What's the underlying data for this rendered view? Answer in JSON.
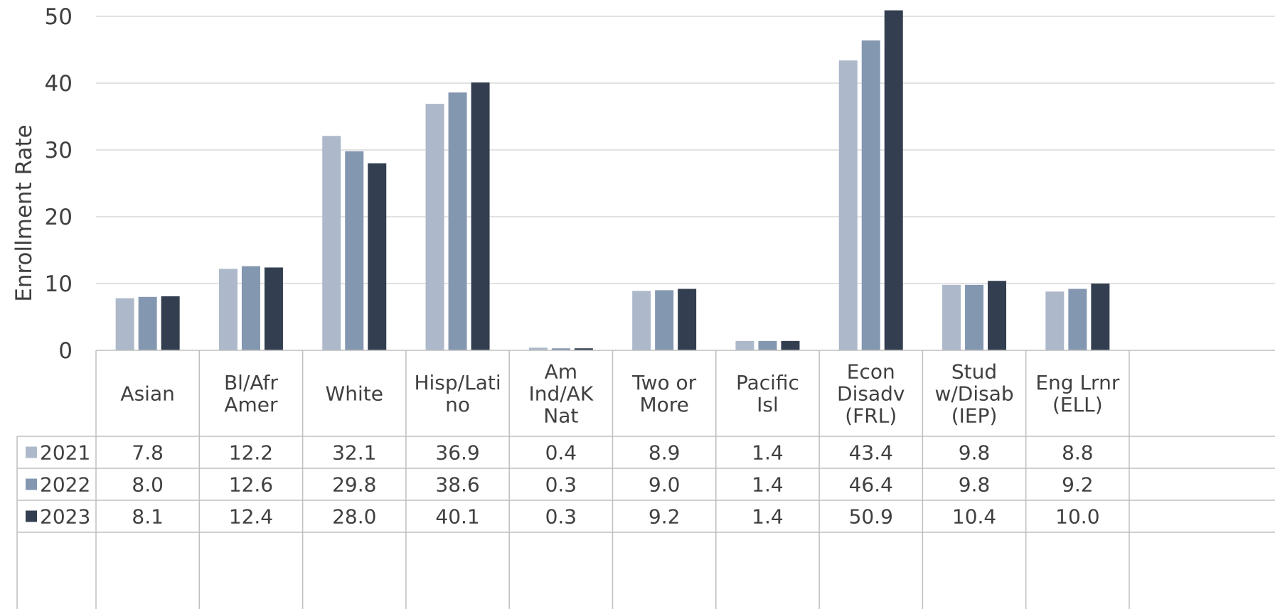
{
  "chart_data": {
    "type": "bar",
    "ylabel": "Enrollment Rate",
    "ylim": [
      0,
      50
    ],
    "yticks": [
      0,
      10,
      20,
      30,
      40,
      50
    ],
    "grid": true,
    "legend_placement": "data-table-left",
    "categories": [
      [
        "Asian"
      ],
      [
        "Bl/Afr",
        "Amer"
      ],
      [
        "White"
      ],
      [
        "Hisp/Lati",
        "no"
      ],
      [
        "Am",
        "Ind/AK",
        "Nat"
      ],
      [
        "Two or",
        "More"
      ],
      [
        "Pacific",
        "Isl"
      ],
      [
        "Econ",
        "Disadv",
        "(FRL)"
      ],
      [
        "Stud",
        "w/Disab",
        "(IEP)"
      ],
      [
        "Eng Lrnr",
        "(ELL)"
      ]
    ],
    "series": [
      {
        "name": "2021",
        "color": "#adb9ca",
        "values": [
          7.8,
          12.2,
          32.1,
          36.9,
          0.4,
          8.9,
          1.4,
          43.4,
          9.8,
          8.8
        ],
        "labels": [
          "7.8",
          "12.2",
          "32.1",
          "36.9",
          "0.4",
          "8.9",
          "1.4",
          "43.4",
          "9.8",
          "8.8"
        ]
      },
      {
        "name": "2022",
        "color": "#8497b0",
        "values": [
          8.0,
          12.6,
          29.8,
          38.6,
          0.3,
          9.0,
          1.4,
          46.4,
          9.8,
          9.2
        ],
        "labels": [
          "8.0",
          "12.6",
          "29.8",
          "38.6",
          "0.3",
          "9.0",
          "1.4",
          "46.4",
          "9.8",
          "9.2"
        ]
      },
      {
        "name": "2023",
        "color": "#333f50",
        "values": [
          8.1,
          12.4,
          28.0,
          40.1,
          0.3,
          9.2,
          1.4,
          50.9,
          10.4,
          10.0
        ],
        "labels": [
          "8.1",
          "12.4",
          "28.0",
          "40.1",
          "0.3",
          "9.2",
          "1.4",
          "50.9",
          "10.4",
          "10.0"
        ]
      }
    ]
  }
}
